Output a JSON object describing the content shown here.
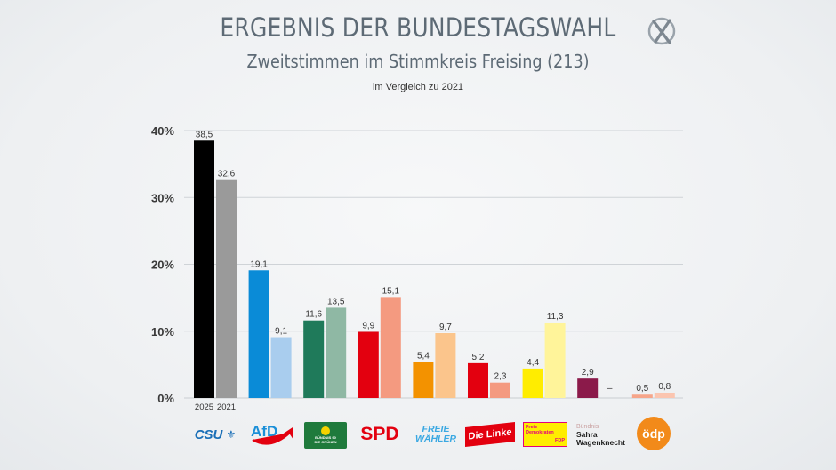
{
  "header": {
    "title": "ERGEBNIS DER BUNDESTAGSWAHL",
    "subtitle": "Zweitstimmen im Stimmkreis Freising (213)",
    "note": "im Vergleich zu 2021",
    "icon": "ballot-x-icon"
  },
  "chart_data": {
    "type": "bar",
    "title": "ERGEBNIS DER BUNDESTAGSWAHL",
    "subtitle": "Zweitstimmen im Stimmkreis Freising (213)",
    "xlabel": "",
    "ylabel": "",
    "ylim": [
      0,
      40
    ],
    "y_ticks": [
      "0%",
      "10%",
      "20%",
      "30%",
      "40%"
    ],
    "grid": true,
    "year_labels": [
      "2025",
      "2021"
    ],
    "categories": [
      "CSU",
      "AfD",
      "Bündnis 90 / Die Grünen",
      "SPD",
      "Freie Wähler",
      "Die Linke",
      "FDP",
      "Bündnis Sahra Wagenknecht",
      "ödp"
    ],
    "series": [
      {
        "name": "2025",
        "values": [
          38.5,
          19.1,
          11.6,
          9.9,
          5.4,
          5.2,
          4.4,
          2.9,
          0.5
        ],
        "labels": [
          "38,5",
          "19,1",
          "11,6",
          "9,9",
          "5,4",
          "5,2",
          "4,4",
          "2,9",
          "0,5"
        ]
      },
      {
        "name": "2021",
        "values": [
          32.6,
          9.1,
          13.5,
          15.1,
          9.7,
          2.3,
          11.3,
          null,
          0.8
        ],
        "labels": [
          "32,6",
          "9,1",
          "13,5",
          "15,1",
          "9,7",
          "2,3",
          "11,3",
          "–",
          "0,8"
        ]
      }
    ],
    "colors": {
      "2025": [
        "#000000",
        "#0a8bd7",
        "#1f7a5a",
        "#e3000f",
        "#f39200",
        "#e3000f",
        "#ffed00",
        "#8b1a4a",
        "#f6a58a"
      ],
      "2021": [
        "#9a9a9a",
        "#a9cdee",
        "#8fb8a4",
        "#f49a80",
        "#fbc58c",
        "#f49a80",
        "#fff49a",
        "#c59ab0",
        "#fbc5b0"
      ]
    }
  },
  "logos": {
    "csu": "CSU",
    "afd": "AfD",
    "gruene_line1": "BÜNDNIS 90",
    "gruene_line2": "DIE GRÜNEN",
    "spd": "SPD",
    "fw_line1": "FREIE",
    "fw_line2": "WÄHLER",
    "linke": "Die Linke",
    "fdp_line1": "Freie",
    "fdp_line2": "Demokraten",
    "fdp_line3": "FDP",
    "bsw_line1": "Bündnis",
    "bsw_line2": "Sahra",
    "bsw_line3": "Wagenknecht",
    "oedp": "ödp"
  }
}
